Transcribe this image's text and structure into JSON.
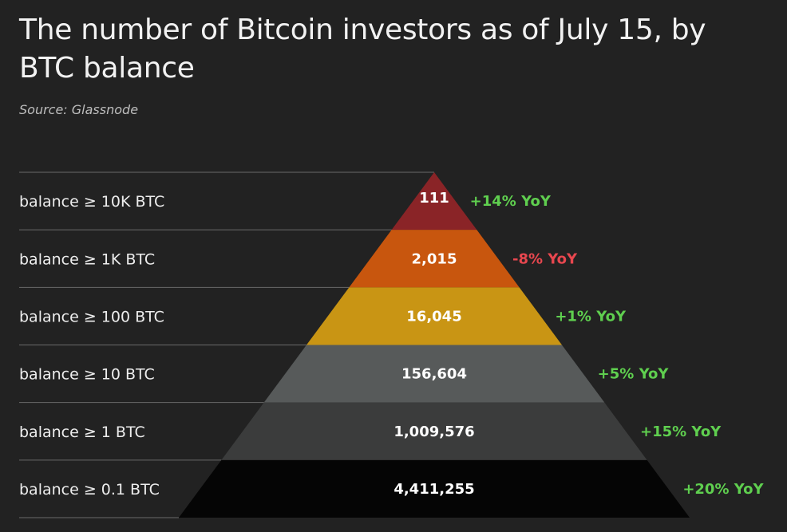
{
  "title": "The number of Bitcoin investors as of July 15, by BTC balance",
  "source": "Source: Glassnode",
  "colors": {
    "background": "#222222",
    "positive": "#5fcf4f",
    "negative": "#e8474f",
    "divider": "#6a6a6a"
  },
  "chart_data": {
    "type": "pyramid",
    "title": "The number of Bitcoin investors as of July 15, by BTC balance",
    "categories": [
      "balance ≥ 10K BTC",
      "balance ≥ 1K BTC",
      "balance ≥ 100 BTC",
      "balance ≥ 10 BTC",
      "balance ≥ 1 BTC",
      "balance ≥ 0.1 BTC"
    ],
    "values": [
      111,
      2015,
      16045,
      156604,
      1009576,
      4411255
    ],
    "value_labels": [
      "111",
      "2,015",
      "16,045",
      "156,604",
      "1,009,576",
      "4,411,255"
    ],
    "yoy_change": [
      "+14% YoY",
      "-8% YoY",
      "+1% YoY",
      "+5% YoY",
      "+15% YoY",
      "+20% YoY"
    ],
    "yoy_direction": [
      "up",
      "down",
      "up",
      "up",
      "up",
      "up"
    ],
    "tier_colors": [
      "#8a2427",
      "#c8560e",
      "#c99514",
      "#575a5a",
      "#3b3c3c",
      "#050505"
    ]
  }
}
